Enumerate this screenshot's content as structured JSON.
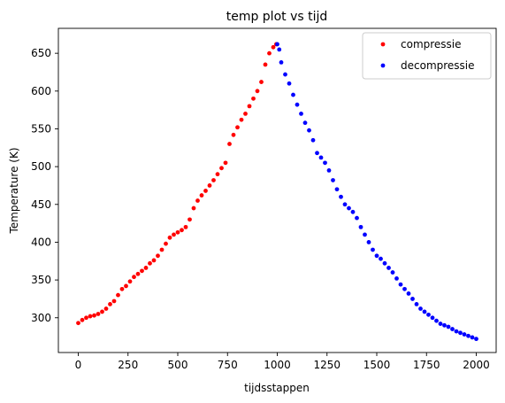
{
  "chart_data": {
    "type": "scatter",
    "title": "temp plot vs tijd",
    "xlabel": "tijdsstappen",
    "ylabel": "Temperature (K)",
    "xlim": [
      -100,
      2100
    ],
    "ylim": [
      254,
      683
    ],
    "xticks": [
      0,
      250,
      500,
      750,
      1000,
      1250,
      1500,
      1750,
      2000
    ],
    "yticks": [
      300,
      350,
      400,
      450,
      500,
      550,
      600,
      650
    ],
    "grid": false,
    "legend_position": "top-right",
    "series": [
      {
        "name": "compressie",
        "color": "#ff0000",
        "x": [
          0,
          20,
          40,
          60,
          80,
          100,
          120,
          140,
          160,
          180,
          200,
          220,
          240,
          260,
          280,
          300,
          320,
          340,
          360,
          380,
          400,
          420,
          440,
          460,
          480,
          500,
          520,
          540,
          560,
          580,
          600,
          620,
          640,
          660,
          680,
          700,
          720,
          740,
          760,
          780,
          800,
          820,
          840,
          860,
          880,
          900,
          920,
          940,
          960,
          980,
          995
        ],
        "y": [
          293,
          297,
          300,
          302,
          303,
          305,
          308,
          312,
          318,
          322,
          330,
          338,
          342,
          348,
          354,
          358,
          362,
          366,
          372,
          376,
          382,
          390,
          398,
          406,
          410,
          413,
          416,
          420,
          430,
          445,
          455,
          462,
          468,
          475,
          482,
          490,
          498,
          505,
          530,
          542,
          552,
          562,
          570,
          580,
          590,
          600,
          612,
          635,
          650,
          658,
          662
        ]
      },
      {
        "name": "decompressie",
        "color": "#0000ff",
        "x": [
          1000,
          1010,
          1020,
          1040,
          1060,
          1080,
          1100,
          1120,
          1140,
          1160,
          1180,
          1200,
          1220,
          1240,
          1260,
          1280,
          1300,
          1320,
          1340,
          1360,
          1380,
          1400,
          1420,
          1440,
          1460,
          1480,
          1500,
          1520,
          1540,
          1560,
          1580,
          1600,
          1620,
          1640,
          1660,
          1680,
          1700,
          1720,
          1740,
          1760,
          1780,
          1800,
          1820,
          1840,
          1860,
          1880,
          1900,
          1920,
          1940,
          1960,
          1980,
          2000
        ],
        "y": [
          662,
          655,
          638,
          622,
          610,
          595,
          582,
          570,
          558,
          548,
          535,
          518,
          512,
          505,
          495,
          482,
          470,
          460,
          450,
          445,
          440,
          432,
          420,
          410,
          400,
          390,
          382,
          378,
          372,
          366,
          360,
          352,
          344,
          338,
          332,
          325,
          318,
          312,
          308,
          304,
          300,
          296,
          292,
          290,
          288,
          285,
          282,
          280,
          278,
          276,
          274,
          272
        ]
      }
    ]
  }
}
